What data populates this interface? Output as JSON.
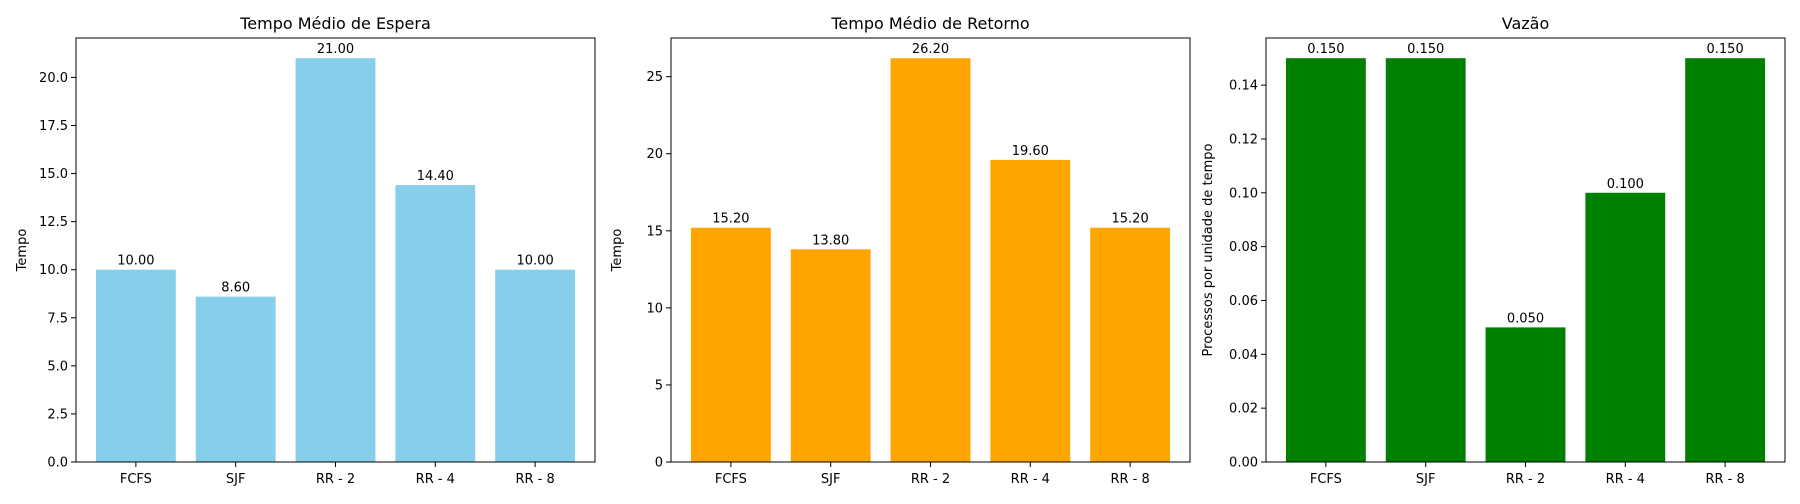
{
  "chart_data": [
    {
      "type": "bar",
      "title": "Tempo Médio de Espera",
      "xlabel": "",
      "ylabel": "Tempo",
      "categories": [
        "FCFS",
        "SJF",
        "RR - 2",
        "RR - 4",
        "RR - 8"
      ],
      "values": [
        10.0,
        8.6,
        21.0,
        14.4,
        10.0
      ],
      "value_labels": [
        "10.00",
        "8.60",
        "21.00",
        "14.40",
        "10.00"
      ],
      "ylim": [
        0,
        22.05
      ],
      "yticks": [
        0,
        2.5,
        5,
        7.5,
        10,
        12.5,
        15,
        17.5,
        20
      ],
      "ytick_labels": [
        "0.0",
        "2.5",
        "5.0",
        "7.5",
        "10.0",
        "12.5",
        "15.0",
        "17.5",
        "20.0"
      ],
      "color": "#87ceeb",
      "grid": false
    },
    {
      "type": "bar",
      "title": "Tempo Médio de Retorno",
      "xlabel": "",
      "ylabel": "Tempo",
      "categories": [
        "FCFS",
        "SJF",
        "RR - 2",
        "RR - 4",
        "RR - 8"
      ],
      "values": [
        15.2,
        13.8,
        26.2,
        19.6,
        15.2
      ],
      "value_labels": [
        "15.20",
        "13.80",
        "26.20",
        "19.60",
        "15.20"
      ],
      "ylim": [
        0,
        27.51
      ],
      "yticks": [
        0,
        5,
        10,
        15,
        20,
        25
      ],
      "ytick_labels": [
        "0",
        "5",
        "10",
        "15",
        "20",
        "25"
      ],
      "color": "#ffa500",
      "grid": false
    },
    {
      "type": "bar",
      "title": "Vazão",
      "xlabel": "",
      "ylabel": "Processos por unidade de tempo",
      "categories": [
        "FCFS",
        "SJF",
        "RR - 2",
        "RR - 4",
        "RR - 8"
      ],
      "values": [
        0.15,
        0.15,
        0.05,
        0.1,
        0.15
      ],
      "value_labels": [
        "0.150",
        "0.150",
        "0.050",
        "0.100",
        "0.150"
      ],
      "ylim": [
        0,
        0.1575
      ],
      "yticks": [
        0,
        0.02,
        0.04,
        0.06,
        0.08,
        0.1,
        0.12,
        0.14
      ],
      "ytick_labels": [
        "0.00",
        "0.02",
        "0.04",
        "0.06",
        "0.08",
        "0.10",
        "0.12",
        "0.14"
      ],
      "color": "#008000",
      "grid": false
    }
  ]
}
